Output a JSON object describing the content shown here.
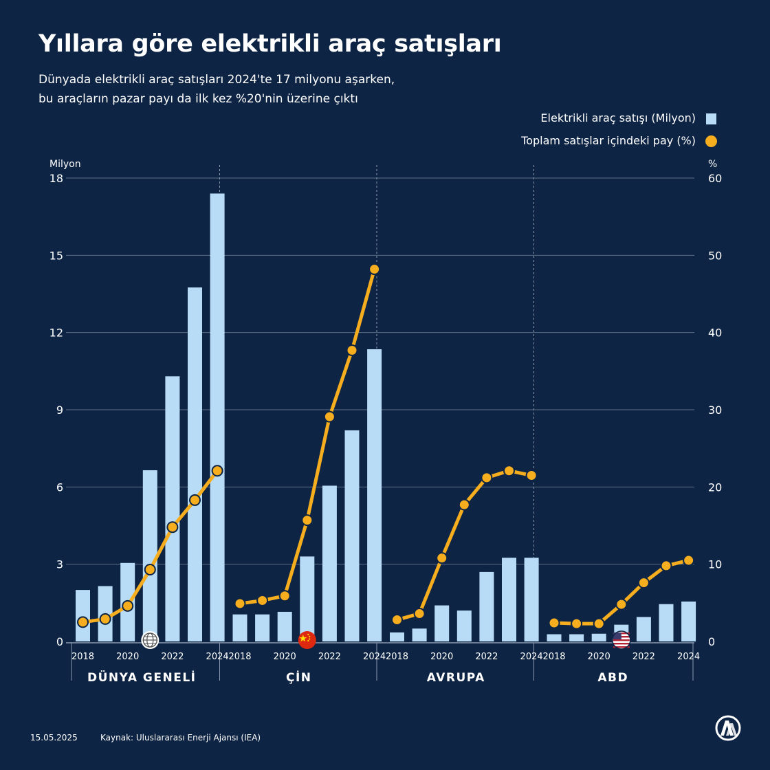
{
  "header": {
    "title": "Yıllara göre elektrikli araç satışları",
    "subtitle_line1": "Dünyada elektrikli araç satışları 2024'te 17 milyonu aşarken,",
    "subtitle_line2": "bu araçların pazar payı da ilk kez %20'nin üzerine çıktı"
  },
  "legend": {
    "bars_label": "Elektrikli araç satışı (Milyon)",
    "line_label": "Toplam satışlar içindeki pay (%)"
  },
  "colors": {
    "background": "#0e2444",
    "bar": "#b8dcf5",
    "line": "#f6ae1f",
    "text": "#ffffff"
  },
  "footer": {
    "date": "15.05.2025",
    "source": "Kaynak: Uluslararası Enerji Ajansı (IEA)",
    "logo_icon": "aa-logo-icon"
  },
  "chart_data": {
    "type": "bar+line",
    "left_axis": {
      "label": "Milyon",
      "range": [
        0,
        18
      ],
      "ticks": [
        "0",
        "3",
        "6",
        "9",
        "12",
        "15",
        "18"
      ]
    },
    "right_axis": {
      "label": "%",
      "range": [
        0,
        60
      ],
      "ticks": [
        "0",
        "10",
        "20",
        "30",
        "40",
        "50",
        "60"
      ]
    },
    "years": [
      2018,
      2019,
      2020,
      2021,
      2022,
      2023,
      2024
    ],
    "year_tick_labels": [
      "2018",
      "2020",
      "2022",
      "2024"
    ],
    "grid": true,
    "panels": [
      {
        "name": "DÜNYA GENELİ",
        "icon": "globe-icon",
        "sales_million": [
          2.0,
          2.15,
          3.05,
          6.65,
          10.3,
          13.75,
          17.4
        ],
        "share_percent": [
          2.5,
          2.9,
          4.6,
          9.3,
          14.8,
          18.3,
          22.1
        ]
      },
      {
        "name": "ÇİN",
        "icon": "china-flag-icon",
        "sales_million": [
          1.05,
          1.05,
          1.15,
          3.3,
          6.05,
          8.2,
          11.35
        ],
        "share_percent": [
          4.9,
          5.3,
          5.9,
          15.7,
          29.1,
          37.7,
          48.2
        ]
      },
      {
        "name": "AVRUPA",
        "icon": "",
        "sales_million": [
          0.35,
          0.5,
          1.4,
          1.2,
          2.7,
          3.25,
          3.25
        ],
        "share_percent": [
          2.8,
          3.6,
          10.8,
          17.7,
          21.2,
          22.1,
          21.5
        ]
      },
      {
        "name": "ABD",
        "icon": "usa-flag-icon",
        "sales_million": [
          0.28,
          0.28,
          0.3,
          0.65,
          0.95,
          1.45,
          1.55
        ],
        "share_percent": [
          2.4,
          2.3,
          2.3,
          4.8,
          7.6,
          9.8,
          10.5
        ]
      }
    ]
  }
}
